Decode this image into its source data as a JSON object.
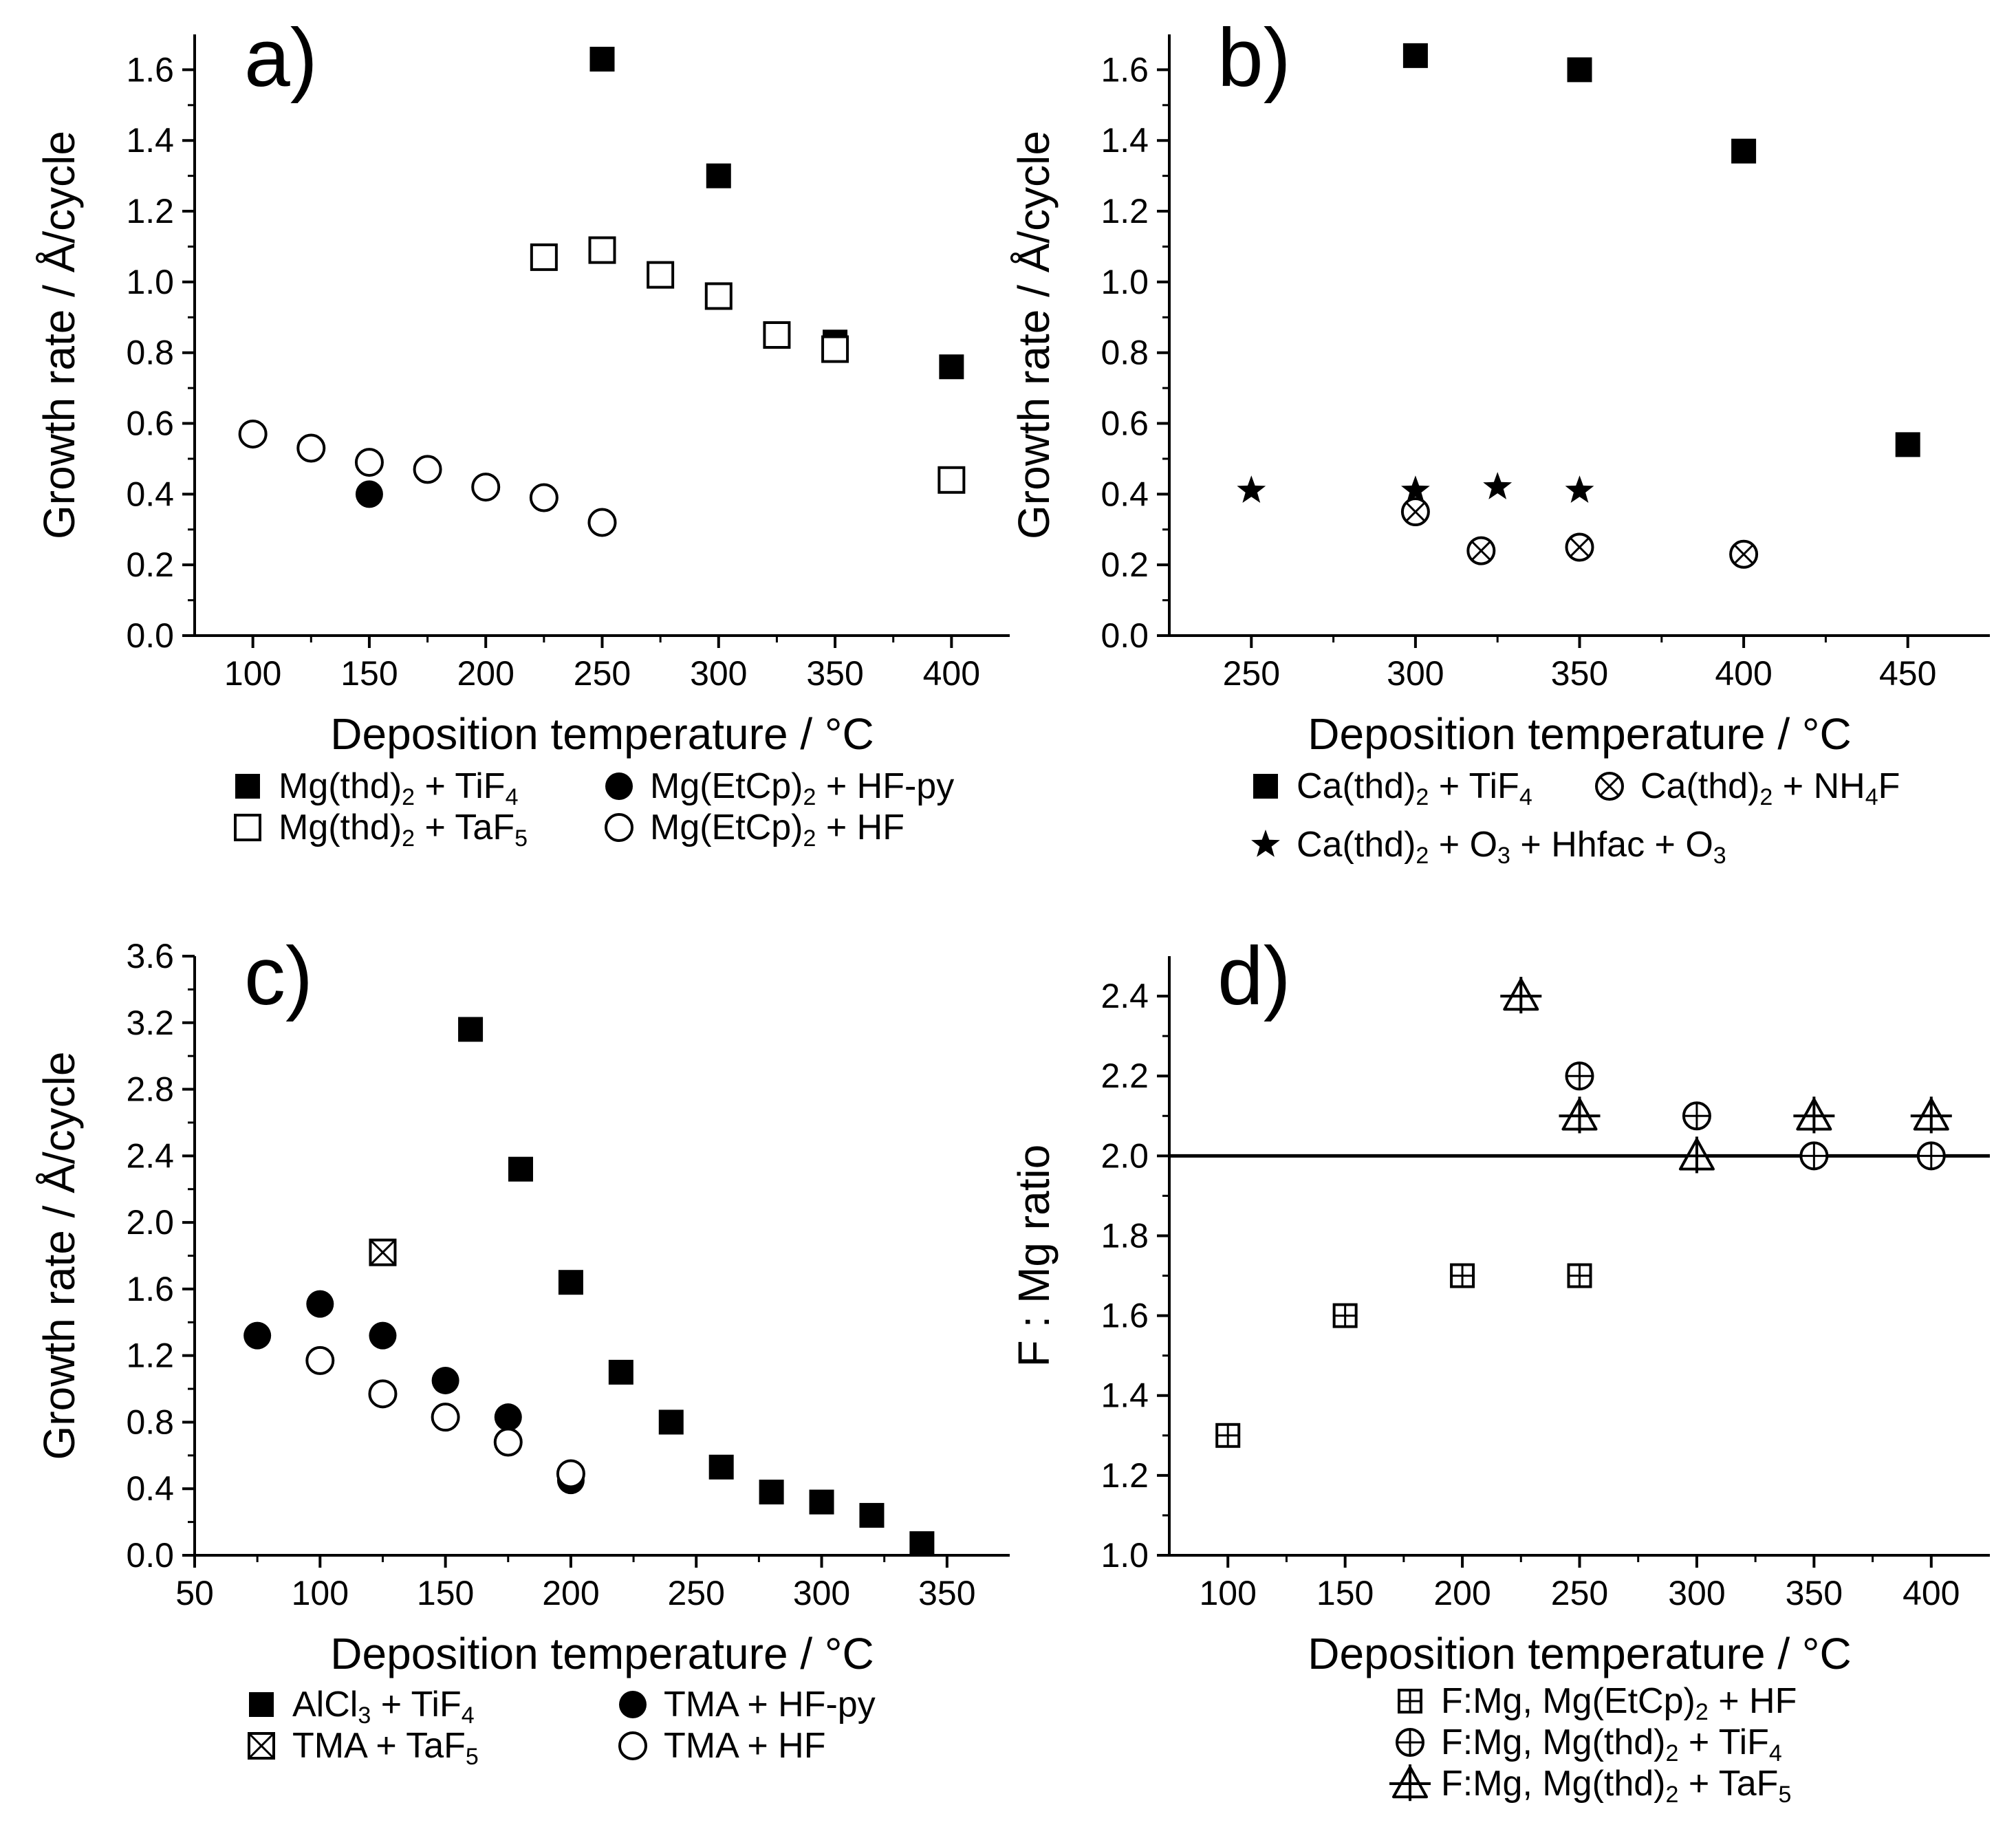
{
  "chart_data": [
    {
      "id": "a",
      "type": "scatter",
      "panel_label": "a)",
      "xlabel": "Deposition temperature / °C",
      "ylabel": "Growth rate / Å/cycle",
      "xlim": [
        75,
        425
      ],
      "ylim": [
        0.0,
        1.7
      ],
      "xticks": [
        100,
        150,
        200,
        250,
        300,
        350,
        400
      ],
      "xtick_labels": [
        "100",
        "150",
        "200",
        "250",
        "300",
        "350",
        "400"
      ],
      "yticks": [
        0.0,
        0.2,
        0.4,
        0.6,
        0.8,
        1.0,
        1.2,
        1.4,
        1.6
      ],
      "ytick_labels": [
        "0.0",
        "0.2",
        "0.4",
        "0.6",
        "0.8",
        "1.0",
        "1.2",
        "1.4",
        "1.6"
      ],
      "series": [
        {
          "marker": "filled-square",
          "legend": [
            "Mg(thd)",
            "2",
            " + TiF",
            "4"
          ],
          "x": [
            250,
            300,
            350,
            400
          ],
          "y": [
            1.63,
            1.3,
            0.83,
            0.76
          ]
        },
        {
          "marker": "open-square",
          "legend": [
            "Mg(thd)",
            "2",
            " + TaF",
            "5"
          ],
          "x": [
            225,
            250,
            275,
            300,
            325,
            350,
            400
          ],
          "y": [
            1.07,
            1.09,
            1.02,
            0.96,
            0.85,
            0.81,
            0.44
          ]
        },
        {
          "marker": "filled-circle",
          "legend": [
            "Mg(EtCp)",
            "2",
            " + HF-py"
          ],
          "x": [
            150
          ],
          "y": [
            0.4
          ]
        },
        {
          "marker": "open-circle",
          "legend": [
            "Mg(EtCp)",
            "2",
            " + HF"
          ],
          "x": [
            100,
            125,
            150,
            175,
            200,
            225,
            250
          ],
          "y": [
            0.57,
            0.53,
            0.49,
            0.47,
            0.42,
            0.39,
            0.32
          ]
        }
      ]
    },
    {
      "id": "b",
      "type": "scatter",
      "panel_label": "b)",
      "xlabel": "Deposition temperature / °C",
      "ylabel": "Growth rate / Å/cycle",
      "xlim": [
        225,
        475
      ],
      "ylim": [
        0.0,
        1.7
      ],
      "xticks": [
        250,
        300,
        350,
        400,
        450
      ],
      "xtick_labels": [
        "250",
        "300",
        "350",
        "400",
        "450"
      ],
      "yticks": [
        0.0,
        0.2,
        0.4,
        0.6,
        0.8,
        1.0,
        1.2,
        1.4,
        1.6
      ],
      "ytick_labels": [
        "0.0",
        "0.2",
        "0.4",
        "0.6",
        "0.8",
        "1.0",
        "1.2",
        "1.4",
        "1.6"
      ],
      "series": [
        {
          "marker": "filled-square",
          "legend": [
            "Ca(thd)",
            "2",
            " + TiF",
            "4"
          ],
          "x": [
            300,
            350,
            400,
            450
          ],
          "y": [
            1.64,
            1.6,
            1.37,
            0.54
          ]
        },
        {
          "marker": "circle-x",
          "legend": [
            "Ca(thd)",
            "2",
            " + NH",
            "4",
            "F"
          ],
          "x": [
            300,
            320,
            350,
            400
          ],
          "y": [
            0.35,
            0.24,
            0.25,
            0.23
          ]
        },
        {
          "marker": "star",
          "legend": [
            "Ca(thd)",
            "2",
            " + O",
            "3",
            " + Hhfac + O",
            "3"
          ],
          "x": [
            250,
            300,
            325,
            350
          ],
          "y": [
            0.41,
            0.41,
            0.42,
            0.41
          ]
        }
      ]
    },
    {
      "id": "c",
      "type": "scatter",
      "panel_label": "c)",
      "xlabel": "Deposition temperature / °C",
      "ylabel": "Growth rate / Å/cycle",
      "xlim": [
        50,
        375
      ],
      "ylim": [
        0.0,
        3.6
      ],
      "xticks": [
        50,
        100,
        150,
        200,
        250,
        300,
        350
      ],
      "xtick_labels": [
        "50",
        "100",
        "150",
        "200",
        "250",
        "300",
        "350"
      ],
      "yticks": [
        0.0,
        0.4,
        0.8,
        1.2,
        1.6,
        2.0,
        2.4,
        2.8,
        3.2,
        3.6
      ],
      "ytick_labels": [
        "0.0",
        "0.4",
        "0.8",
        "1.2",
        "1.6",
        "2.0",
        "2.4",
        "2.8",
        "3.2",
        "3.6"
      ],
      "series": [
        {
          "marker": "filled-square",
          "legend": [
            "AlCl",
            "3",
            " + TiF",
            "4"
          ],
          "x": [
            160,
            180,
            200,
            220,
            240,
            260,
            280,
            300,
            320,
            340
          ],
          "y": [
            3.16,
            2.32,
            1.64,
            1.1,
            0.8,
            0.53,
            0.38,
            0.32,
            0.24,
            0.07
          ]
        },
        {
          "marker": "square-x",
          "legend": [
            "TMA + TaF",
            "5"
          ],
          "x": [
            125
          ],
          "y": [
            1.82
          ]
        },
        {
          "marker": "filled-circle",
          "legend": [
            "TMA + HF-py"
          ],
          "x": [
            75,
            100,
            125,
            150,
            175,
            200
          ],
          "y": [
            1.32,
            1.51,
            1.32,
            1.05,
            0.83,
            0.45
          ]
        },
        {
          "marker": "open-circle",
          "legend": [
            "TMA + HF"
          ],
          "x": [
            100,
            125,
            150,
            175,
            200
          ],
          "y": [
            1.17,
            0.97,
            0.83,
            0.68,
            0.49
          ]
        }
      ]
    },
    {
      "id": "d",
      "type": "scatter",
      "panel_label": "d)",
      "xlabel": "Deposition temperature / °C",
      "ylabel": "F : Mg ratio",
      "xlim": [
        75,
        425
      ],
      "ylim": [
        1.0,
        2.5
      ],
      "xticks": [
        100,
        150,
        200,
        250,
        300,
        350,
        400
      ],
      "xtick_labels": [
        "100",
        "150",
        "200",
        "250",
        "300",
        "350",
        "400"
      ],
      "yticks": [
        1.0,
        1.2,
        1.4,
        1.6,
        1.8,
        2.0,
        2.2,
        2.4
      ],
      "ytick_labels": [
        "1.0",
        "1.2",
        "1.4",
        "1.6",
        "1.8",
        "2.0",
        "2.2",
        "2.4"
      ],
      "reference_line_y": 2.0,
      "series": [
        {
          "marker": "square-plus",
          "legend": [
            "F:Mg, Mg(EtCp)",
            "2",
            " + HF"
          ],
          "x": [
            100,
            150,
            200,
            250
          ],
          "y": [
            1.3,
            1.6,
            1.7,
            1.7
          ]
        },
        {
          "marker": "circle-plus",
          "legend": [
            "F:Mg, Mg(thd)",
            "2",
            " + TiF",
            "4"
          ],
          "x": [
            250,
            300,
            350,
            400
          ],
          "y": [
            2.2,
            2.1,
            2.0,
            2.0
          ]
        },
        {
          "marker": "triangle-plus",
          "legend": [
            "F:Mg, Mg(thd)",
            "2",
            " + TaF",
            "5"
          ],
          "x": [
            225,
            250,
            300,
            350,
            400
          ],
          "y": [
            2.4,
            2.1,
            2.0,
            2.1,
            2.1
          ]
        }
      ]
    }
  ]
}
